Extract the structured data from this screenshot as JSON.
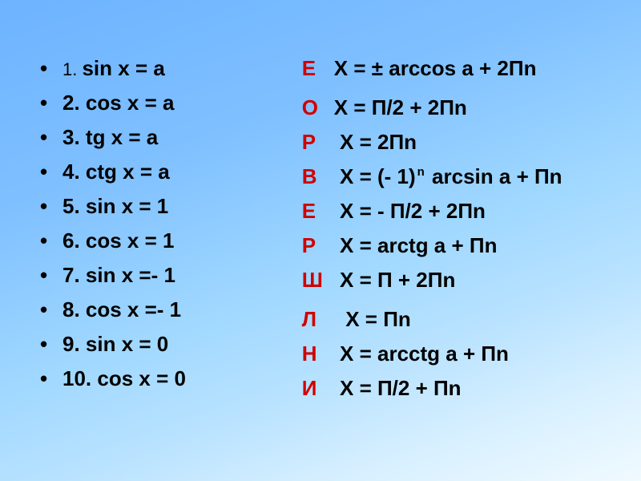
{
  "background": {
    "gradient_colors": [
      "#6db3ff",
      "#7fc0ff",
      "#a0d8ff",
      "#b8e2ff",
      "#d8f0ff",
      "#f0faff"
    ],
    "gradient_angle_deg": 160
  },
  "typography": {
    "font_family": "Arial",
    "base_fontsize_pt": 20,
    "bold": true,
    "text_color": "#000000",
    "letter_color": "#d00000"
  },
  "bullet_char": "•",
  "left_items": [
    {
      "num": "1.",
      "eq": "sin x = a",
      "first": true
    },
    {
      "num": "2.",
      "eq": "cos x = a"
    },
    {
      "num": "3.",
      "eq": "tg x = a"
    },
    {
      "num": "4.",
      "eq": "ctg x = a"
    },
    {
      "num": "5.",
      "eq": "sin x = 1"
    },
    {
      "num": "6.",
      "eq": "cos x = 1"
    },
    {
      "num": "7.",
      "eq": "sin x =- 1"
    },
    {
      "num": "8.",
      "eq": "cos x =- 1"
    },
    {
      "num": "9.",
      "eq": "sin x = 0"
    },
    {
      "num": "10.",
      "eq": "cos x = 0"
    }
  ],
  "right_items": [
    {
      "letter": "Е",
      "eq": "X = ± arccos a + 2Пn",
      "gap_after": true
    },
    {
      "letter": "О",
      "eq": "X = П/2 + 2Пn"
    },
    {
      "letter": "Р",
      "eq": " X = 2Пn"
    },
    {
      "letter": "В",
      "eq_pre": " X = (- 1)",
      "sup": "n",
      "eq_post": " arcsin a + Пn"
    },
    {
      "letter": "Е",
      "eq": " X = - П/2 + 2Пn"
    },
    {
      "letter": "Р",
      "eq": " X = arctg a + Пn"
    },
    {
      "letter": "Ш",
      "eq": " X = П + 2Пn",
      "gap_after": true
    },
    {
      "letter": "Л",
      "eq": "  X = Пn"
    },
    {
      "letter": "Н",
      "eq": " X = arcctg a + Пn"
    },
    {
      "letter": "И",
      "eq": " X = П/2 + Пn"
    }
  ]
}
